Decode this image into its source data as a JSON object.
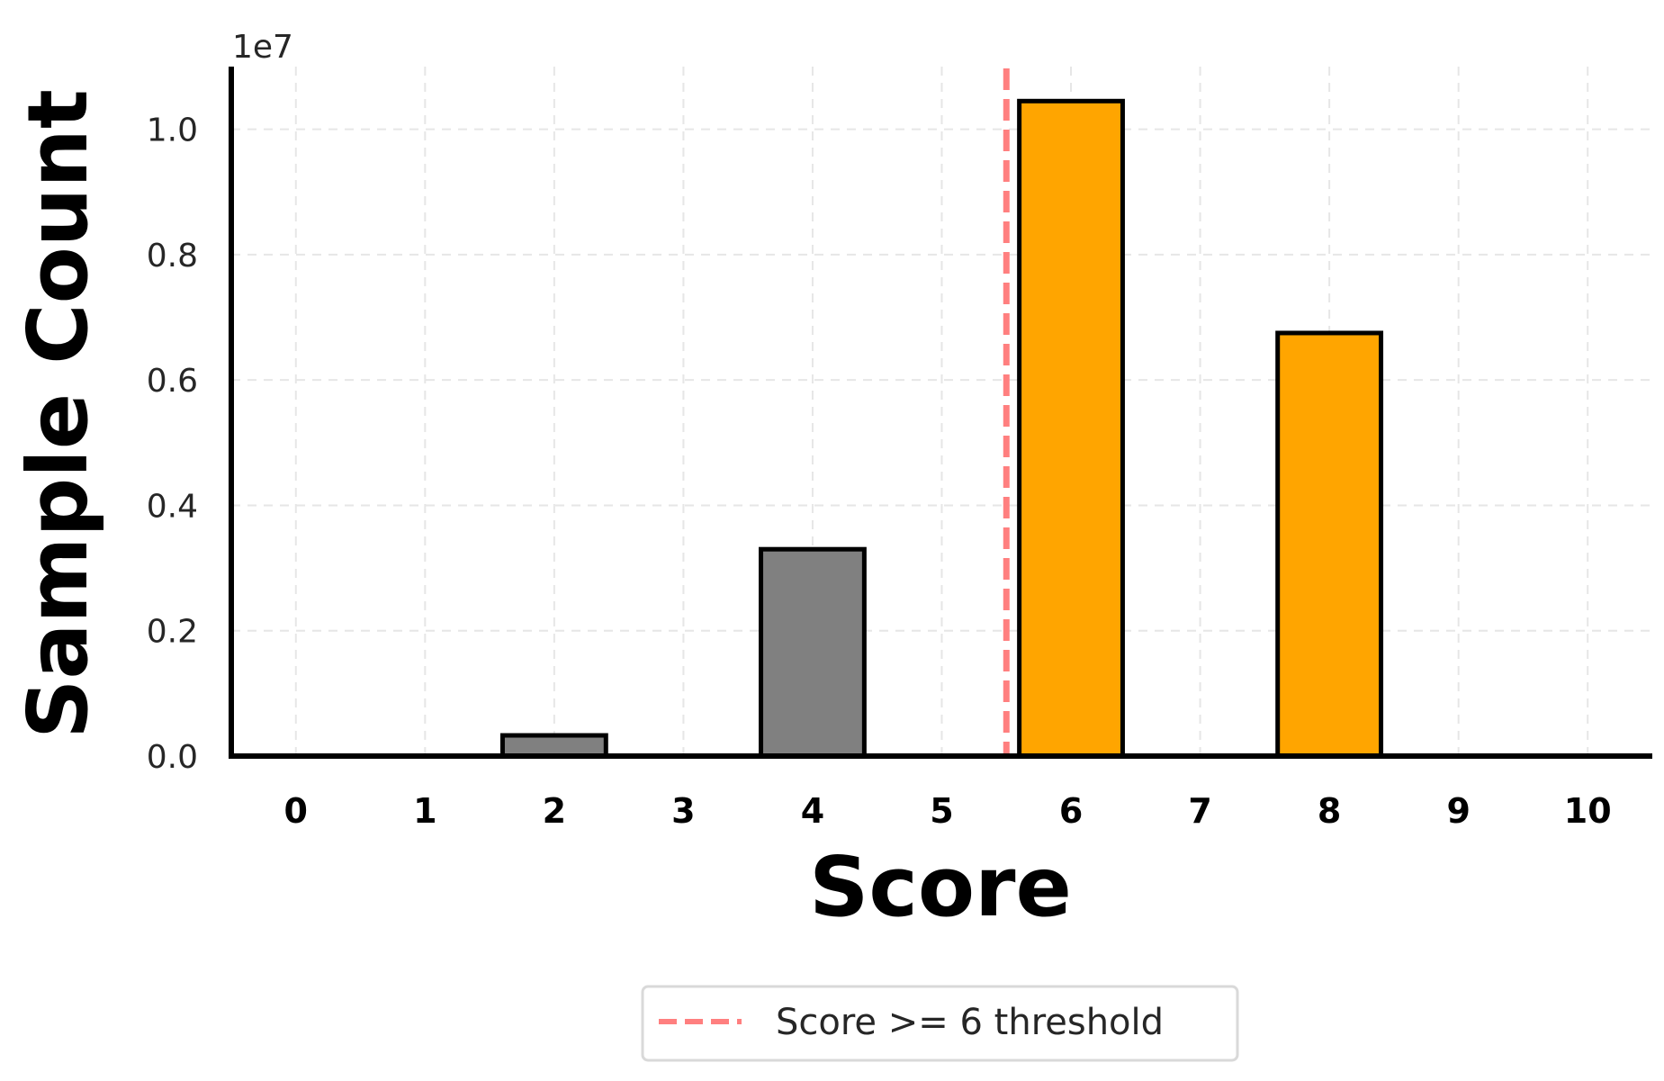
{
  "chart_data": {
    "type": "bar",
    "categories": [
      "0",
      "1",
      "2",
      "3",
      "4",
      "5",
      "6",
      "7",
      "8",
      "9",
      "10"
    ],
    "x": [
      0,
      1,
      2,
      3,
      4,
      5,
      6,
      7,
      8,
      9,
      10
    ],
    "values": [
      0,
      0,
      330000,
      0,
      3300000,
      0,
      10450000,
      0,
      6750000,
      0,
      0
    ],
    "bar_colors": [
      "#808080",
      "#808080",
      "#808080",
      "#808080",
      "#808080",
      "#808080",
      "#FFA500",
      "#808080",
      "#FFA500",
      "#808080",
      "#808080"
    ],
    "xlabel": "Score",
    "ylabel": "Sample Count",
    "ylim": [
      0,
      11000000
    ],
    "xlim": [
      -0.5,
      10.5
    ],
    "y_ticks": [
      0,
      2000000,
      4000000,
      6000000,
      8000000,
      10000000
    ],
    "y_tick_labels": [
      "0.0",
      "0.2",
      "0.4",
      "0.6",
      "0.8",
      "1.0"
    ],
    "y_offset_label": "1e7",
    "threshold": {
      "x": 5.5,
      "color": "#FF7F7F",
      "style": "dashed",
      "label": "Score >= 6 threshold"
    },
    "grid": true,
    "legend_position": "bottom-center"
  }
}
